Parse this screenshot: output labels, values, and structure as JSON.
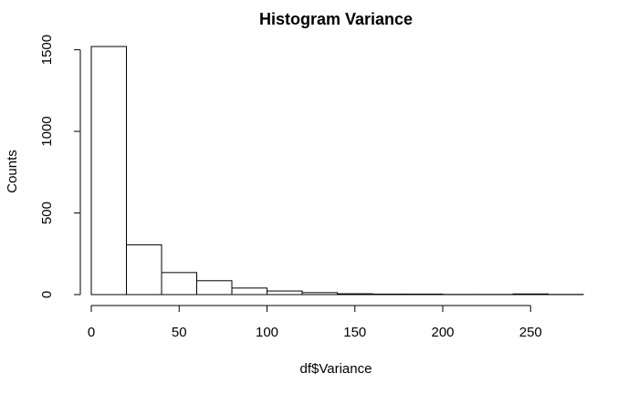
{
  "chart_data": {
    "type": "bar",
    "title": "Histogram Variance",
    "xlabel": "df$Variance",
    "ylabel": "Counts",
    "bin_width": 20,
    "bins": [
      {
        "start": 0,
        "end": 20,
        "count": 1520
      },
      {
        "start": 20,
        "end": 40,
        "count": 305
      },
      {
        "start": 40,
        "end": 60,
        "count": 135
      },
      {
        "start": 60,
        "end": 80,
        "count": 85
      },
      {
        "start": 80,
        "end": 100,
        "count": 40
      },
      {
        "start": 100,
        "end": 120,
        "count": 22
      },
      {
        "start": 120,
        "end": 140,
        "count": 12
      },
      {
        "start": 140,
        "end": 160,
        "count": 5
      },
      {
        "start": 160,
        "end": 180,
        "count": 3
      },
      {
        "start": 180,
        "end": 200,
        "count": 3
      },
      {
        "start": 200,
        "end": 220,
        "count": 1
      },
      {
        "start": 220,
        "end": 240,
        "count": 1
      },
      {
        "start": 240,
        "end": 260,
        "count": 4
      },
      {
        "start": 260,
        "end": 280,
        "count": 1
      }
    ],
    "x_ticks": [
      0,
      50,
      100,
      150,
      200,
      250
    ],
    "y_ticks": [
      0,
      500,
      1000,
      1500
    ],
    "xlim": [
      0,
      280
    ],
    "ylim": [
      0,
      1520
    ],
    "grid": false,
    "legend": "none"
  }
}
